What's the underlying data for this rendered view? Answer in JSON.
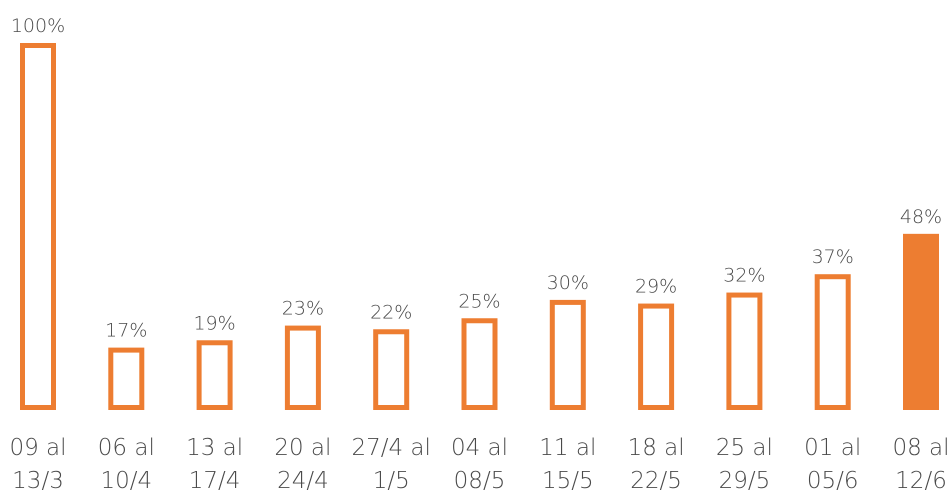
{
  "chart_data": {
    "type": "bar",
    "title": "",
    "xlabel": "",
    "ylabel": "",
    "ylim": [
      0,
      100
    ],
    "grid": false,
    "legend": "none",
    "categories": [
      [
        "09 al",
        "13/3"
      ],
      [
        "06 al",
        "10/4"
      ],
      [
        "13 al",
        "17/4"
      ],
      [
        "20 al",
        "24/4"
      ],
      [
        "27/4 al",
        "1/5"
      ],
      [
        "04 al",
        "08/5"
      ],
      [
        "11 al",
        "15/5"
      ],
      [
        "18 al",
        "22/5"
      ],
      [
        "25 al",
        "29/5"
      ],
      [
        "01 al",
        "05/6"
      ],
      [
        "08 al",
        "12/6"
      ]
    ],
    "values": [
      100,
      17,
      19,
      23,
      22,
      25,
      30,
      29,
      32,
      37,
      48
    ],
    "value_labels": [
      "100%",
      "17%",
      "19%",
      "23%",
      "22%",
      "25%",
      "30%",
      "29%",
      "32%",
      "37%",
      "48%"
    ],
    "filled": [
      false,
      false,
      false,
      false,
      false,
      false,
      false,
      false,
      false,
      false,
      true
    ],
    "bar_color": "#ED7D31",
    "text_color": "#4a4a4a"
  }
}
